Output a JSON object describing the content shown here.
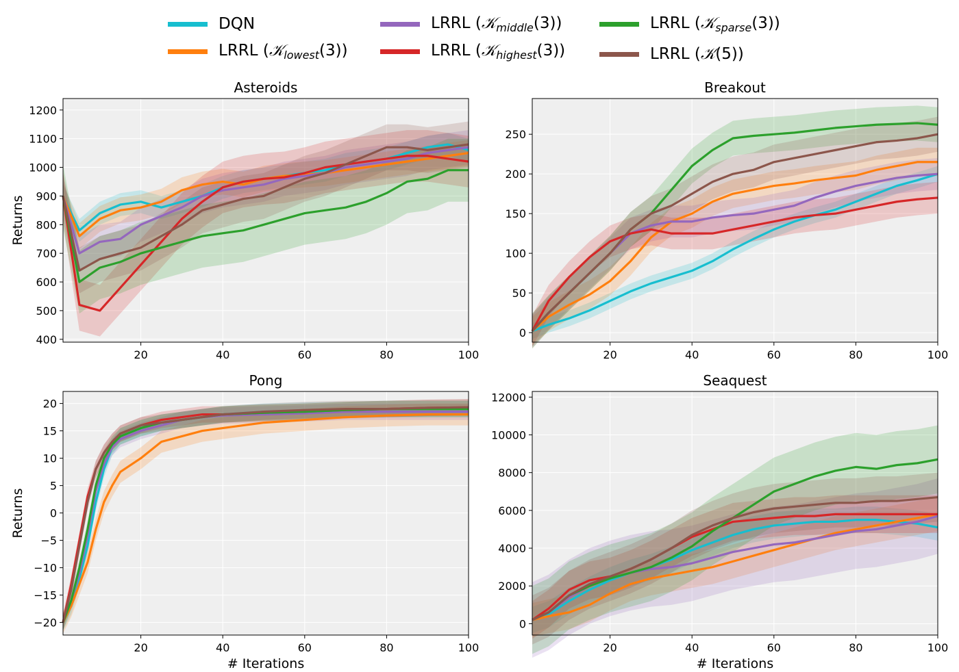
{
  "legend": [
    {
      "name": "DQN",
      "color": "#17becf",
      "label": "DQN",
      "sym": "",
      "sub": "",
      "tail": ""
    },
    {
      "name": "LRRL_lowest",
      "color": "#ff7f0e",
      "label": "LRRL (",
      "sym": "𝒦",
      "sub": "lowest",
      "tail": "(3))"
    },
    {
      "name": "LRRL_middle",
      "color": "#9467bd",
      "label": "LRRL (",
      "sym": "𝒦",
      "sub": "middle",
      "tail": "(3))"
    },
    {
      "name": "LRRL_highest",
      "color": "#d62728",
      "label": "LRRL (",
      "sym": "𝒦",
      "sub": "highest",
      "tail": "(3))"
    },
    {
      "name": "LRRL_sparse",
      "color": "#2ca02c",
      "label": "LRRL (",
      "sym": "𝒦",
      "sub": "sparse",
      "tail": "(3))"
    },
    {
      "name": "LRRL_K5",
      "color": "#8c564b",
      "label": "LRRL (",
      "sym": "𝒦",
      "sub": "",
      "tail": "(5))"
    }
  ],
  "chart_data": [
    {
      "type": "line",
      "title": "Asteroids",
      "xlabel": "",
      "ylabel": "Returns",
      "xlim": [
        1,
        100
      ],
      "ylim": [
        390,
        1240
      ],
      "xticks": [
        20,
        40,
        60,
        80,
        100
      ],
      "yticks": [
        400,
        500,
        600,
        700,
        800,
        900,
        1000,
        1100,
        1200
      ],
      "yticklabels": [
        "400",
        "500",
        "600",
        "700",
        "800",
        "900",
        "1000",
        "1100",
        "1200"
      ],
      "x": [
        1,
        5,
        10,
        15,
        20,
        25,
        30,
        35,
        40,
        45,
        50,
        55,
        60,
        65,
        70,
        75,
        80,
        85,
        90,
        95,
        100
      ],
      "series": [
        {
          "name": "DQN",
          "color": "#17becf",
          "band": 40,
          "values": [
            900,
            780,
            840,
            870,
            880,
            860,
            880,
            900,
            930,
            950,
            960,
            970,
            980,
            990,
            1010,
            1020,
            1030,
            1050,
            1070,
            1080,
            1060
          ]
        },
        {
          "name": "LRRL_lowest",
          "color": "#ff7f0e",
          "band": 45,
          "values": [
            900,
            760,
            820,
            850,
            860,
            880,
            920,
            940,
            950,
            940,
            960,
            970,
            975,
            980,
            990,
            1000,
            1010,
            1020,
            1030,
            1040,
            1050
          ]
        },
        {
          "name": "LRRL_middle",
          "color": "#9467bd",
          "band": 60,
          "values": [
            900,
            700,
            740,
            750,
            800,
            830,
            860,
            900,
            920,
            930,
            940,
            960,
            970,
            980,
            1000,
            1010,
            1020,
            1030,
            1050,
            1060,
            1070
          ]
        },
        {
          "name": "LRRL_highest",
          "color": "#d62728",
          "band": 90,
          "values": [
            900,
            520,
            500,
            580,
            660,
            740,
            820,
            880,
            930,
            950,
            960,
            965,
            980,
            1000,
            1010,
            1020,
            1030,
            1040,
            1040,
            1030,
            1020
          ]
        },
        {
          "name": "LRRL_sparse",
          "color": "#2ca02c",
          "band": 110,
          "values": [
            900,
            600,
            650,
            670,
            700,
            720,
            740,
            760,
            770,
            780,
            800,
            820,
            840,
            850,
            860,
            880,
            910,
            950,
            960,
            990,
            990
          ]
        },
        {
          "name": "LRRL_K5",
          "color": "#8c564b",
          "band": 80,
          "values": [
            900,
            640,
            680,
            700,
            720,
            760,
            800,
            850,
            870,
            890,
            900,
            930,
            960,
            980,
            1010,
            1040,
            1070,
            1070,
            1060,
            1070,
            1080
          ]
        }
      ]
    },
    {
      "type": "line",
      "title": "Breakout",
      "xlabel": "",
      "ylabel": "",
      "xlim": [
        1,
        100
      ],
      "ylim": [
        -12,
        295
      ],
      "xticks": [
        20,
        40,
        60,
        80,
        100
      ],
      "yticks": [
        0,
        50,
        100,
        150,
        200,
        250
      ],
      "yticklabels": [
        "0",
        "50",
        "100",
        "150",
        "200",
        "250"
      ],
      "x": [
        1,
        5,
        10,
        15,
        20,
        25,
        30,
        35,
        40,
        45,
        50,
        55,
        60,
        65,
        70,
        75,
        80,
        85,
        90,
        95,
        100
      ],
      "series": [
        {
          "name": "DQN",
          "color": "#17becf",
          "band": 10,
          "values": [
            2,
            10,
            18,
            28,
            40,
            52,
            62,
            70,
            78,
            90,
            105,
            118,
            130,
            140,
            148,
            155,
            165,
            175,
            185,
            192,
            200
          ]
        },
        {
          "name": "LRRL_lowest",
          "color": "#ff7f0e",
          "band": 18,
          "values": [
            2,
            20,
            35,
            48,
            65,
            90,
            120,
            140,
            150,
            165,
            175,
            180,
            185,
            188,
            192,
            195,
            198,
            205,
            210,
            215,
            215
          ]
        },
        {
          "name": "LRRL_middle",
          "color": "#9467bd",
          "band": 20,
          "values": [
            2,
            25,
            50,
            75,
            100,
            125,
            135,
            140,
            140,
            145,
            148,
            150,
            155,
            160,
            170,
            178,
            185,
            190,
            195,
            198,
            200
          ]
        },
        {
          "name": "LRRL_highest",
          "color": "#d62728",
          "band": 20,
          "values": [
            2,
            40,
            70,
            95,
            115,
            125,
            130,
            125,
            125,
            125,
            130,
            135,
            140,
            145,
            148,
            150,
            155,
            160,
            165,
            168,
            170
          ]
        },
        {
          "name": "LRRL_sparse",
          "color": "#2ca02c",
          "band": 22,
          "values": [
            2,
            25,
            50,
            75,
            100,
            130,
            150,
            180,
            210,
            230,
            245,
            248,
            250,
            252,
            255,
            258,
            260,
            262,
            263,
            264,
            262
          ]
        },
        {
          "name": "LRRL_K5",
          "color": "#8c564b",
          "band": 22,
          "values": [
            2,
            25,
            50,
            75,
            100,
            130,
            150,
            160,
            175,
            190,
            200,
            205,
            215,
            220,
            225,
            230,
            235,
            240,
            242,
            245,
            250
          ]
        }
      ]
    },
    {
      "type": "line",
      "title": "Pong",
      "xlabel": "# Iterations",
      "ylabel": "Returns",
      "xlim": [
        1,
        100
      ],
      "ylim": [
        -22.3,
        22.2
      ],
      "xticks": [
        20,
        40,
        60,
        80,
        100
      ],
      "yticks": [
        -20,
        -15,
        -10,
        -5,
        0,
        5,
        10,
        15,
        20
      ],
      "yticklabels": [
        "−20",
        "−15",
        "−10",
        "−5",
        "0",
        "5",
        "10",
        "15",
        "20"
      ],
      "x": [
        1,
        3,
        5,
        7,
        9,
        11,
        13,
        15,
        20,
        25,
        30,
        35,
        40,
        50,
        60,
        70,
        80,
        90,
        100
      ],
      "series": [
        {
          "name": "DQN",
          "color": "#17becf",
          "band": 1.5,
          "values": [
            -20,
            -17,
            -12,
            -6,
            2,
            8,
            12,
            14,
            15.5,
            16.5,
            17,
            17.5,
            18,
            18.5,
            18.7,
            18.8,
            19,
            19,
            19
          ]
        },
        {
          "name": "LRRL_lowest",
          "color": "#ff7f0e",
          "band": 2.0,
          "values": [
            -20,
            -17,
            -13,
            -9,
            -3,
            2,
            5,
            7.5,
            10,
            13,
            14,
            15,
            15.5,
            16.5,
            17,
            17.5,
            17.8,
            18,
            18
          ]
        },
        {
          "name": "LRRL_middle",
          "color": "#9467bd",
          "band": 1.5,
          "values": [
            -20,
            -16,
            -11,
            -4,
            4,
            9,
            12,
            13.5,
            15,
            16,
            17,
            17.5,
            17.8,
            18,
            18.2,
            18.5,
            18.5,
            18.5,
            18.5
          ]
        },
        {
          "name": "LRRL_highest",
          "color": "#d62728",
          "band": 1.5,
          "values": [
            -20,
            -13,
            -5,
            3,
            8,
            11,
            13,
            14.5,
            16,
            17,
            17.5,
            18,
            18,
            18.3,
            18.5,
            18.8,
            19,
            19.2,
            19.3
          ]
        },
        {
          "name": "LRRL_sparse",
          "color": "#2ca02c",
          "band": 1.5,
          "values": [
            -20,
            -16,
            -10,
            -3,
            5,
            10,
            12.5,
            14,
            15.5,
            16.5,
            17,
            17.5,
            18,
            18.3,
            18.5,
            18.8,
            19,
            19,
            19
          ]
        },
        {
          "name": "LRRL_K5",
          "color": "#8c564b",
          "band": 1.5,
          "values": [
            -20,
            -14,
            -6,
            2,
            8,
            11,
            13,
            14.5,
            16,
            16.5,
            17,
            17.5,
            18,
            18.5,
            18.8,
            19,
            19,
            19.2,
            19.3
          ]
        }
      ]
    },
    {
      "type": "line",
      "title": "Seaquest",
      "xlabel": "# Iterations",
      "ylabel": "",
      "xlim": [
        1,
        100
      ],
      "ylim": [
        -600,
        12300
      ],
      "xticks": [
        20,
        40,
        60,
        80,
        100
      ],
      "yticks": [
        0,
        2000,
        4000,
        6000,
        8000,
        10000,
        12000
      ],
      "yticklabels": [
        "0",
        "2000",
        "4000",
        "6000",
        "8000",
        "10000",
        "12000"
      ],
      "x": [
        1,
        5,
        10,
        15,
        20,
        25,
        30,
        35,
        40,
        45,
        50,
        55,
        60,
        65,
        70,
        75,
        80,
        85,
        90,
        95,
        100
      ],
      "series": [
        {
          "name": "DQN",
          "color": "#17becf",
          "band": 700,
          "values": [
            200,
            500,
            1200,
            1800,
            2300,
            2700,
            3000,
            3400,
            3900,
            4300,
            4700,
            5000,
            5200,
            5300,
            5400,
            5400,
            5500,
            5500,
            5400,
            5300,
            5100
          ]
        },
        {
          "name": "LRRL_lowest",
          "color": "#ff7f0e",
          "band": 900,
          "values": [
            200,
            400,
            600,
            1000,
            1600,
            2100,
            2400,
            2600,
            2800,
            3000,
            3300,
            3600,
            3900,
            4200,
            4500,
            4800,
            5000,
            5200,
            5400,
            5600,
            5800
          ]
        },
        {
          "name": "LRRL_middle",
          "color": "#9467bd",
          "band": 2000,
          "values": [
            200,
            600,
            1400,
            2000,
            2400,
            2700,
            2900,
            3000,
            3200,
            3500,
            3800,
            4000,
            4200,
            4300,
            4500,
            4700,
            4900,
            5000,
            5200,
            5400,
            5700
          ]
        },
        {
          "name": "LRRL_highest",
          "color": "#d62728",
          "band": 1000,
          "values": [
            200,
            800,
            1800,
            2300,
            2500,
            2900,
            3400,
            4000,
            4600,
            5000,
            5400,
            5500,
            5600,
            5700,
            5700,
            5800,
            5800,
            5800,
            5800,
            5800,
            5800
          ]
        },
        {
          "name": "LRRL_sparse",
          "color": "#2ca02c",
          "band": 1800,
          "values": [
            200,
            600,
            1500,
            2000,
            2400,
            2700,
            3000,
            3500,
            4100,
            4900,
            5600,
            6300,
            7000,
            7400,
            7800,
            8100,
            8300,
            8200,
            8400,
            8500,
            8700
          ]
        },
        {
          "name": "LRRL_K5",
          "color": "#8c564b",
          "band": 1300,
          "values": [
            200,
            600,
            1500,
            2100,
            2500,
            2900,
            3400,
            4000,
            4700,
            5200,
            5600,
            5900,
            6100,
            6200,
            6300,
            6400,
            6400,
            6500,
            6500,
            6600,
            6700
          ]
        }
      ]
    }
  ]
}
